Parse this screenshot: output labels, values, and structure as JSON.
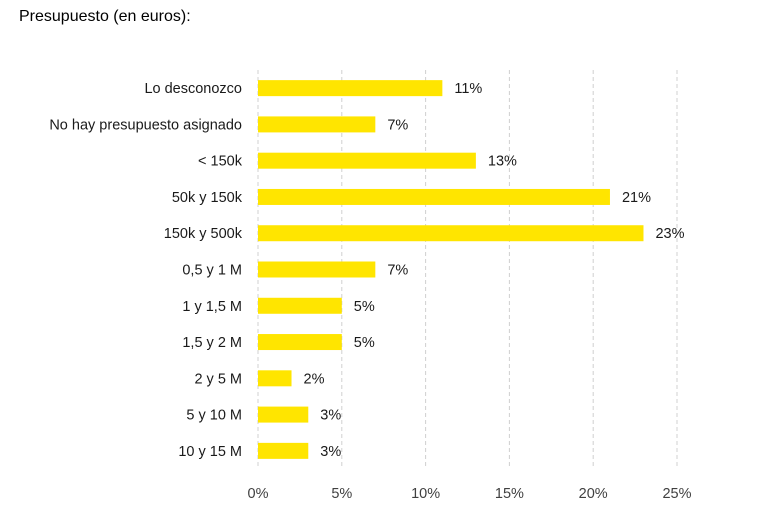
{
  "chart_data": {
    "type": "bar",
    "orientation": "horizontal",
    "title": "Presupuesto (en euros):",
    "categories": [
      "Lo desconozco",
      "No hay presupuesto asignado",
      "< 150k",
      "50k y 150k",
      "150k y 500k",
      "0,5 y 1 M",
      "1 y 1,5 M",
      "1,5 y 2 M",
      "2 y 5 M",
      "5 y 10 M",
      "10 y 15 M"
    ],
    "values": [
      11,
      7,
      13,
      21,
      23,
      7,
      5,
      5,
      2,
      3,
      3
    ],
    "value_labels": [
      "11%",
      "7%",
      "13%",
      "21%",
      "23%",
      "7%",
      "5%",
      "5%",
      "2%",
      "3%",
      "3%"
    ],
    "x_ticks": [
      0,
      5,
      10,
      15,
      20,
      25
    ],
    "x_tick_labels": [
      "0%",
      "5%",
      "10%",
      "15%",
      "20%",
      "25%"
    ],
    "xlim": [
      0,
      25
    ],
    "xlabel": "",
    "ylabel": "",
    "grid": "vertical dashed",
    "legend": "none",
    "bar_color": "#FFE500",
    "grid_color": "#d0d0d0"
  }
}
